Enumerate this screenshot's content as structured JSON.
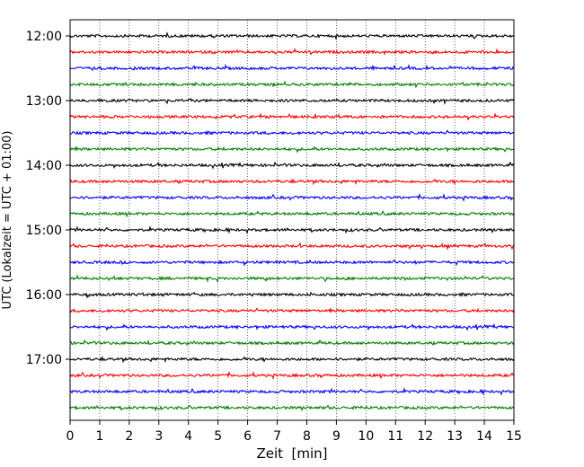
{
  "chart_data": {
    "type": "line",
    "title": "",
    "xlabel": "Zeit  [min]",
    "ylabel": "UTC (Lokalzeit = UTC + 01:00)",
    "xlim": [
      0,
      15
    ],
    "x_ticks": [
      "0",
      "1",
      "2",
      "3",
      "4",
      "5",
      "6",
      "7",
      "8",
      "9",
      "10",
      "11",
      "12",
      "13",
      "14",
      "15"
    ],
    "y_tick_labels": [
      "12:00",
      "13:00",
      "14:00",
      "15:00",
      "16:00",
      "17:00"
    ],
    "grid": {
      "x": true,
      "y": false
    },
    "traces": [
      {
        "start": "12:00",
        "color": "#000000"
      },
      {
        "start": "12:15",
        "color": "#ff0000"
      },
      {
        "start": "12:30",
        "color": "#0000ff"
      },
      {
        "start": "12:45",
        "color": "#007f00"
      },
      {
        "start": "13:00",
        "color": "#000000"
      },
      {
        "start": "13:15",
        "color": "#ff0000"
      },
      {
        "start": "13:30",
        "color": "#0000ff"
      },
      {
        "start": "13:45",
        "color": "#007f00"
      },
      {
        "start": "14:00",
        "color": "#000000"
      },
      {
        "start": "14:15",
        "color": "#ff0000"
      },
      {
        "start": "14:30",
        "color": "#0000ff"
      },
      {
        "start": "14:45",
        "color": "#007f00"
      },
      {
        "start": "15:00",
        "color": "#000000"
      },
      {
        "start": "15:15",
        "color": "#ff0000"
      },
      {
        "start": "15:30",
        "color": "#0000ff"
      },
      {
        "start": "15:45",
        "color": "#007f00"
      },
      {
        "start": "16:00",
        "color": "#000000"
      },
      {
        "start": "16:15",
        "color": "#ff0000"
      },
      {
        "start": "16:30",
        "color": "#0000ff"
      },
      {
        "start": "16:45",
        "color": "#007f00"
      },
      {
        "start": "17:00",
        "color": "#000000"
      },
      {
        "start": "17:15",
        "color": "#ff0000"
      },
      {
        "start": "17:30",
        "color": "#0000ff"
      },
      {
        "start": "17:45",
        "color": "#007f00"
      }
    ]
  }
}
